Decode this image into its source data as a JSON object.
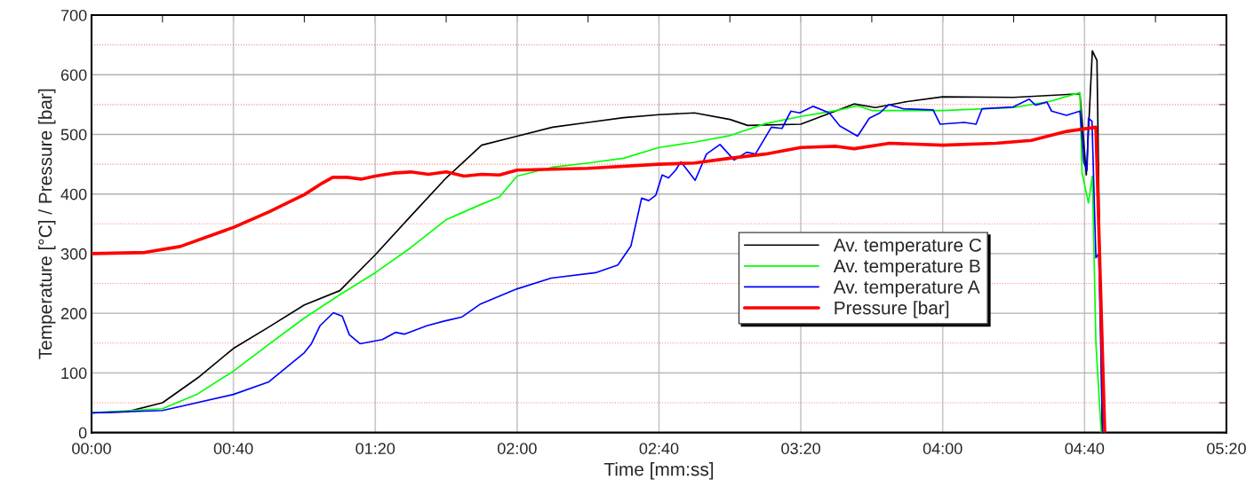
{
  "chart_data": {
    "type": "line",
    "xlabel": "Time [mm:ss]",
    "ylabel": "Temperature [°C] / Pressure [bar]",
    "xlim": [
      0,
      320
    ],
    "ylim": [
      0,
      700
    ],
    "xticks": [
      {
        "value": 0,
        "label": "00:00"
      },
      {
        "value": 20,
        "label": null
      },
      {
        "value": 40,
        "label": "00:40"
      },
      {
        "value": 60,
        "label": null
      },
      {
        "value": 80,
        "label": "01:20"
      },
      {
        "value": 100,
        "label": null
      },
      {
        "value": 120,
        "label": "02:00"
      },
      {
        "value": 140,
        "label": null
      },
      {
        "value": 160,
        "label": "02:40"
      },
      {
        "value": 180,
        "label": null
      },
      {
        "value": 200,
        "label": "03:20"
      },
      {
        "value": 220,
        "label": null
      },
      {
        "value": 240,
        "label": "04:00"
      },
      {
        "value": 260,
        "label": null
      },
      {
        "value": 280,
        "label": "04:40"
      },
      {
        "value": 300,
        "label": null
      },
      {
        "value": 320,
        "label": "05:20"
      }
    ],
    "yticks": [
      0,
      {
        "value": 50,
        "label": null
      },
      100,
      {
        "value": 150,
        "label": null
      },
      200,
      {
        "value": 250,
        "label": null
      },
      300,
      {
        "value": 350,
        "label": null
      },
      400,
      {
        "value": 450,
        "label": null
      },
      500,
      {
        "value": 550,
        "label": null
      },
      600,
      {
        "value": 650,
        "label": null
      },
      700
    ],
    "grid": true,
    "legend": "center right",
    "line_style": "solid",
    "marker": "none",
    "series": [
      {
        "name": "Av. temperature C",
        "color": "#000000",
        "x": [
          0,
          10,
          20,
          30,
          40,
          50,
          60,
          70,
          80,
          90,
          100,
          110,
          120,
          130,
          140,
          150,
          160,
          170,
          180,
          185,
          200,
          215,
          221,
          230,
          240,
          260,
          278.7,
          280.5,
          282.2,
          283.5,
          285
        ],
        "values": [
          33,
          35,
          50,
          92,
          141,
          177,
          214,
          238,
          298,
          363,
          427,
          482,
          497,
          512,
          520,
          528,
          533,
          536,
          525,
          515,
          517,
          551,
          545,
          555,
          563,
          562,
          568,
          432,
          640,
          624,
          0
        ]
      },
      {
        "name": "Av. temperature B",
        "color": "#00ff00",
        "x": [
          0,
          20,
          30,
          40,
          50,
          60,
          70,
          80,
          90,
          100,
          110,
          115,
          120,
          130,
          140,
          150,
          160,
          170,
          180,
          190,
          200,
          210,
          216,
          220,
          240,
          260,
          270,
          278.7,
          279.3,
          281.1,
          282.2,
          283.2,
          284.7
        ],
        "values": [
          33,
          40,
          65,
          103,
          148,
          192,
          231,
          268,
          310,
          357,
          383,
          395,
          430,
          445,
          452,
          460,
          478,
          487,
          498,
          518,
          530,
          540,
          548,
          540,
          540,
          545,
          555,
          570,
          435,
          385,
          430,
          150,
          0
        ]
      },
      {
        "name": "Av. temperature A",
        "color": "#0000ff",
        "x": [
          0,
          20,
          40,
          50,
          60,
          62,
          64.4,
          68.2,
          70.7,
          72.7,
          75.7,
          82,
          85.7,
          88.2,
          94.5,
          99.5,
          104.5,
          109.5,
          120,
          129.6,
          142.1,
          148.4,
          152.1,
          155.1,
          157.1,
          159.1,
          160.9,
          162.7,
          164.7,
          166.2,
          170.2,
          173.4,
          177.2,
          181.2,
          184.7,
          187.2,
          191.7,
          194.7,
          197.2,
          199.7,
          203.5,
          208,
          211,
          216,
          219.3,
          222.3,
          224.8,
          228.8,
          237.3,
          239.3,
          246.1,
          249.4,
          251.1,
          259.9,
          264.4,
          266.2,
          269.4,
          270.7,
          274.9,
          278.7,
          279.8,
          280.7,
          281.1,
          282.1,
          283.2,
          284,
          285.1
        ],
        "values": [
          33,
          37,
          64,
          85,
          134,
          149,
          179,
          201,
          195,
          164,
          149,
          156,
          168,
          165,
          179,
          187,
          194,
          215,
          241,
          259,
          268,
          281,
          313,
          393,
          389,
          398,
          432,
          427,
          440,
          454,
          423,
          467,
          483,
          457,
          470,
          467,
          512,
          510,
          539,
          536,
          547,
          536,
          514,
          497,
          527,
          536,
          550,
          543,
          541,
          517,
          520,
          517,
          543,
          546,
          559,
          549,
          554,
          539,
          532,
          539,
          453,
          440,
          527,
          522,
          293,
          300,
          0
        ]
      },
      {
        "name": "Pressure [bar]",
        "color": "#ff0000",
        "x": [
          0,
          15,
          25,
          40,
          50,
          60,
          65,
          68,
          72,
          76,
          80,
          85,
          90,
          95,
          100,
          105,
          110,
          115,
          120,
          140,
          160,
          170,
          180,
          190,
          200,
          210,
          215,
          225,
          240,
          255,
          265,
          275,
          283.2,
          285.7
        ],
        "values": [
          300,
          302,
          312,
          344,
          370,
          399,
          418,
          428,
          428,
          425,
          430,
          435,
          437,
          433,
          437,
          430,
          433,
          432,
          440,
          443,
          450,
          452,
          460,
          467,
          478,
          480,
          476,
          485,
          482,
          485,
          490,
          505,
          512,
          0
        ]
      }
    ]
  }
}
